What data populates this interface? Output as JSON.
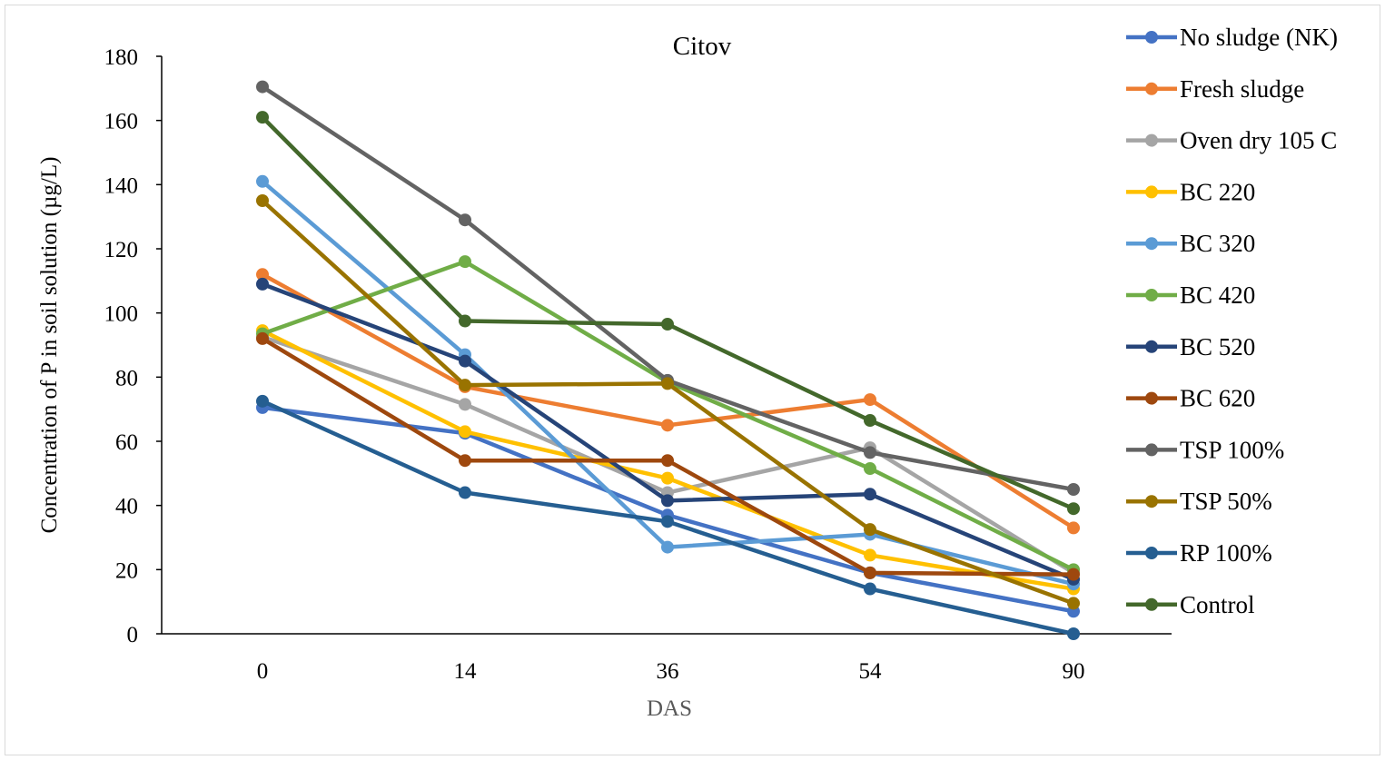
{
  "chart_data": {
    "type": "line",
    "title": "Citov",
    "xlabel": "DAS",
    "ylabel": "Concentration of P in soil solution (µg/L)",
    "categories": [
      "0",
      "14",
      "36",
      "54",
      "90"
    ],
    "ylim": [
      0,
      180
    ],
    "yticks": [
      "0",
      "20",
      "40",
      "60",
      "80",
      "100",
      "120",
      "140",
      "160",
      "180"
    ],
    "grid": false,
    "legend_position": "right",
    "series": [
      {
        "name": "No sludge (NK)",
        "color": "#4472C4",
        "values": [
          70.5,
          62.5,
          37,
          19,
          7
        ]
      },
      {
        "name": "Fresh sludge",
        "color": "#ED7D31",
        "values": [
          112,
          77,
          65,
          73,
          33
        ]
      },
      {
        "name": "Oven dry 105 C",
        "color": "#A5A5A5",
        "values": [
          92.5,
          71.5,
          44,
          58,
          19
        ]
      },
      {
        "name": "BC 220",
        "color": "#FFC000",
        "values": [
          94.5,
          63,
          48.5,
          24.5,
          14
        ]
      },
      {
        "name": "BC 320",
        "color": "#5B9BD5",
        "values": [
          141,
          87,
          27,
          31,
          15.5
        ]
      },
      {
        "name": "BC 420",
        "color": "#70AD47",
        "values": [
          93.5,
          116,
          78.5,
          51.5,
          20
        ]
      },
      {
        "name": "BC 520",
        "color": "#264478",
        "values": [
          109,
          85,
          41.5,
          43.5,
          17
        ]
      },
      {
        "name": "BC 620",
        "color": "#9E480E",
        "values": [
          92,
          54,
          54,
          19,
          18.5
        ]
      },
      {
        "name": "TSP 100%",
        "color": "#636363",
        "values": [
          170.5,
          129,
          79,
          56.5,
          45
        ]
      },
      {
        "name": "TSP 50%",
        "color": "#997300",
        "values": [
          135,
          77.5,
          78,
          32.5,
          9.5
        ]
      },
      {
        "name": "RP 100%",
        "color": "#255E91",
        "values": [
          72.5,
          44,
          35,
          14,
          0
        ]
      },
      {
        "name": "Control",
        "color": "#43682B",
        "values": [
          161,
          97.5,
          96.5,
          66.5,
          39
        ]
      }
    ]
  }
}
